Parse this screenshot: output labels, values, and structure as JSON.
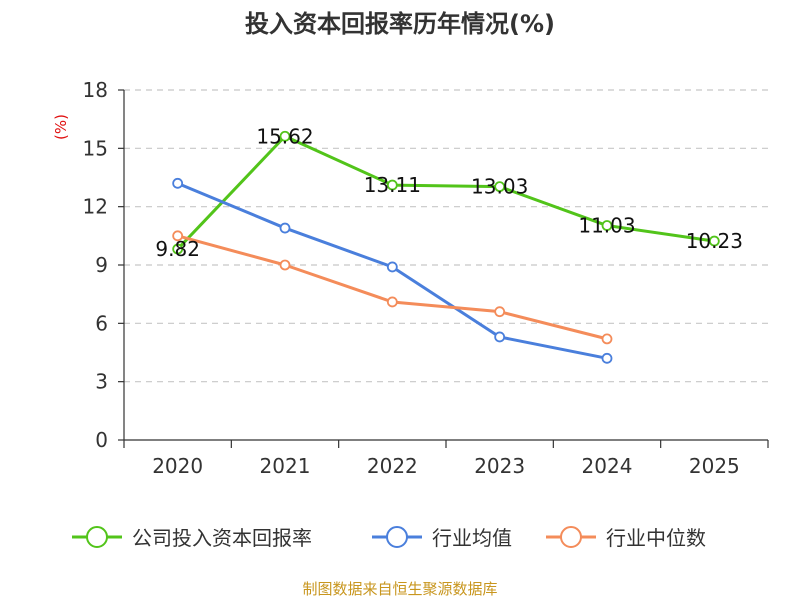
{
  "chart_data": {
    "type": "line",
    "title": "投入资本回报率历年情况(%)",
    "xlabel": "",
    "ylabel": "(%)",
    "categories": [
      "2020",
      "2021",
      "2022",
      "2023",
      "2024",
      "2025"
    ],
    "ylim": [
      0,
      18
    ],
    "yticks": [
      0,
      3,
      6,
      9,
      12,
      15,
      18
    ],
    "grid": true,
    "legend_position": "bottom",
    "series": [
      {
        "name": "公司投入资本回报率",
        "color": "#52c41a",
        "values": [
          9.82,
          15.62,
          13.11,
          13.03,
          11.03,
          10.23
        ],
        "labels": [
          "9.82",
          "15.62",
          "13.11",
          "13.03",
          "11.03",
          "10.23"
        ]
      },
      {
        "name": "行业均值",
        "color": "#4a7fdc",
        "values": [
          13.2,
          10.9,
          8.9,
          5.3,
          4.2,
          null
        ]
      },
      {
        "name": "行业中位数",
        "color": "#f48c5a",
        "values": [
          10.5,
          9.0,
          7.1,
          6.6,
          5.2,
          null
        ]
      }
    ]
  },
  "source": "制图数据来自恒生聚源数据库"
}
